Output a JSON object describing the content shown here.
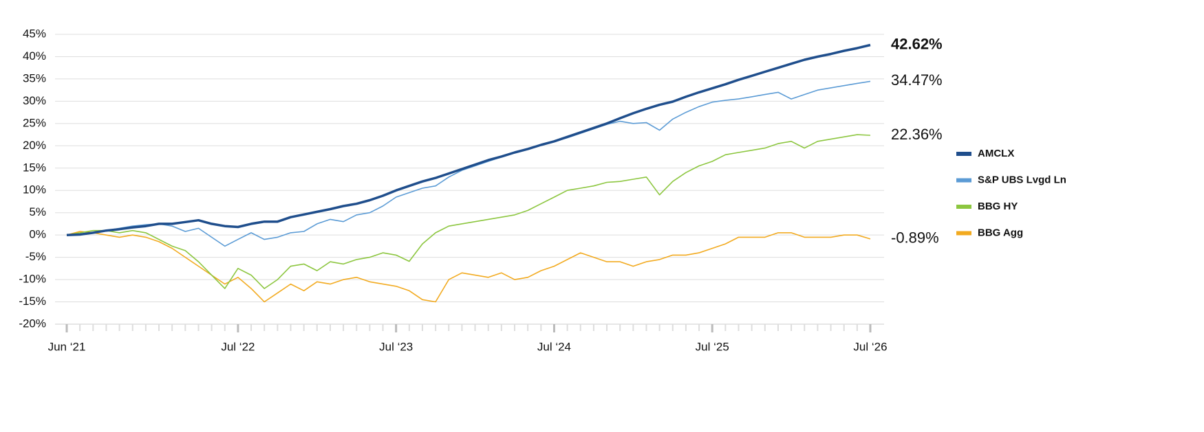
{
  "chart_data": {
    "type": "line",
    "x": [
      "2021-06",
      "2021-07",
      "2021-08",
      "2021-09",
      "2021-10",
      "2021-11",
      "2021-12",
      "2022-01",
      "2022-02",
      "2022-03",
      "2022-04",
      "2022-05",
      "2022-06",
      "2022-07",
      "2022-08",
      "2022-09",
      "2022-10",
      "2022-11",
      "2022-12",
      "2023-01",
      "2023-02",
      "2023-03",
      "2023-04",
      "2023-05",
      "2023-06",
      "2023-07",
      "2023-08",
      "2023-09",
      "2023-10",
      "2023-11",
      "2023-12",
      "2024-01",
      "2024-02",
      "2024-03",
      "2024-04",
      "2024-05",
      "2024-06",
      "2024-07",
      "2024-08",
      "2024-09",
      "2024-10",
      "2024-11",
      "2024-12",
      "2025-01",
      "2025-02",
      "2025-03",
      "2025-04",
      "2025-05",
      "2025-06",
      "2025-07",
      "2025-08",
      "2025-09",
      "2025-10",
      "2025-11",
      "2025-12",
      "2026-01",
      "2026-02",
      "2026-03",
      "2026-04",
      "2026-05",
      "2026-06",
      "2026-07"
    ],
    "series": [
      {
        "name": "AMCLX",
        "color": "#1f4e8c",
        "width": 3.5,
        "end_label": "42.62%",
        "bold": true,
        "values": [
          0,
          0.1,
          0.5,
          1.0,
          1.3,
          1.7,
          2.0,
          2.5,
          2.5,
          2.9,
          3.3,
          2.5,
          2.0,
          1.8,
          2.5,
          3.0,
          3.0,
          4.0,
          4.6,
          5.2,
          5.8,
          6.5,
          7.0,
          7.8,
          8.8,
          10.0,
          11.0,
          12.0,
          12.8,
          13.8,
          14.8,
          15.8,
          16.8,
          17.6,
          18.5,
          19.3,
          20.2,
          21.0,
          22.0,
          23.0,
          24.0,
          25.0,
          26.2,
          27.3,
          28.3,
          29.2,
          29.9,
          31.0,
          32.0,
          32.9,
          33.8,
          34.8,
          35.7,
          36.6,
          37.5,
          38.4,
          39.3,
          40.0,
          40.6,
          41.3,
          41.9,
          42.62
        ]
      },
      {
        "name": "S&P UBS Lvgd Ln",
        "color": "#5b9bd5",
        "width": 1.6,
        "end_label": "34.47%",
        "bold": false,
        "values": [
          0,
          0.1,
          0.5,
          1.0,
          1.5,
          2.0,
          2.3,
          2.5,
          2.0,
          0.8,
          1.5,
          -0.5,
          -2.5,
          -1.0,
          0.5,
          -1.0,
          -0.5,
          0.5,
          0.8,
          2.5,
          3.5,
          3.0,
          4.5,
          5.0,
          6.5,
          8.5,
          9.5,
          10.5,
          11.0,
          13.0,
          14.5,
          15.5,
          16.5,
          17.5,
          18.5,
          19.2,
          20.2,
          21.0,
          21.8,
          22.8,
          23.8,
          24.8,
          25.5,
          25.0,
          25.2,
          23.5,
          26.0,
          27.5,
          28.8,
          29.8,
          30.2,
          30.5,
          31.0,
          31.5,
          32.0,
          30.5,
          31.5,
          32.5,
          33.0,
          33.5,
          34.0,
          34.47
        ]
      },
      {
        "name": "BBG HY",
        "color": "#8cc63f",
        "width": 1.6,
        "end_label": "22.36%",
        "bold": false,
        "values": [
          0,
          0.5,
          1.0,
          1.0,
          0.5,
          1.0,
          0.5,
          -1.0,
          -2.5,
          -3.5,
          -6,
          -9,
          -12,
          -7.5,
          -9,
          -12,
          -10,
          -7,
          -6.5,
          -8,
          -6,
          -6.5,
          -5.5,
          -5,
          -4,
          -4.5,
          -5.9,
          -2,
          0.5,
          2,
          2.5,
          3,
          3.5,
          4,
          4.5,
          5.5,
          7,
          8.5,
          10,
          10.5,
          11,
          11.8,
          12,
          12.5,
          13,
          9,
          12,
          14,
          15.5,
          16.5,
          18,
          18.5,
          19,
          19.5,
          20.5,
          21,
          19.5,
          21,
          21.5,
          22,
          22.5,
          22.36
        ]
      },
      {
        "name": "BBG Agg",
        "color": "#f2aa1f",
        "width": 1.6,
        "end_label": "-0.89%",
        "bold": false,
        "values": [
          0,
          0.8,
          0.5,
          0,
          -0.5,
          0,
          -0.5,
          -1.5,
          -3,
          -5,
          -7,
          -9,
          -11,
          -9.5,
          -12,
          -15,
          -13,
          -11,
          -12.5,
          -10.5,
          -11,
          -10,
          -9.5,
          -10.5,
          -11,
          -11.5,
          -12.5,
          -14.5,
          -15,
          -10,
          -8.5,
          -9,
          -9.5,
          -8.5,
          -10,
          -9.5,
          -8,
          -7,
          -5.5,
          -4,
          -5,
          -6,
          -6,
          -7,
          -6,
          -5.5,
          -4.5,
          -4.5,
          -4,
          -3,
          -2,
          -0.5,
          -0.5,
          -0.5,
          0.5,
          0.5,
          -0.5,
          -0.5,
          -0.5,
          0,
          0,
          -0.89
        ]
      }
    ],
    "xticks": [
      {
        "value": "2021-06",
        "label": "Jun ‘21"
      },
      {
        "value": "2022-07",
        "label": "Jul ‘22"
      },
      {
        "value": "2023-07",
        "label": "Jul ‘23"
      },
      {
        "value": "2024-07",
        "label": "Jul ‘24"
      },
      {
        "value": "2025-07",
        "label": "Jul ‘25"
      },
      {
        "value": "2026-07",
        "label": "Jul ‘26"
      }
    ],
    "ylim": [
      -20,
      45
    ],
    "yticks": [
      {
        "value": -20,
        "label": "-20%"
      },
      {
        "value": -15,
        "label": "-15%"
      },
      {
        "value": -10,
        "label": "-10%"
      },
      {
        "value": -5,
        "label": "-5%"
      },
      {
        "value": 0,
        "label": "0%"
      },
      {
        "value": 5,
        "label": "5%"
      },
      {
        "value": 10,
        "label": "10%"
      },
      {
        "value": 15,
        "label": "15%"
      },
      {
        "value": 20,
        "label": "20%"
      },
      {
        "value": 25,
        "label": "25%"
      },
      {
        "value": 30,
        "label": "30%"
      },
      {
        "value": 35,
        "label": "35%"
      },
      {
        "value": 40,
        "label": "40%"
      },
      {
        "value": 45,
        "label": "45%"
      }
    ],
    "grid": true,
    "legend": "right"
  }
}
